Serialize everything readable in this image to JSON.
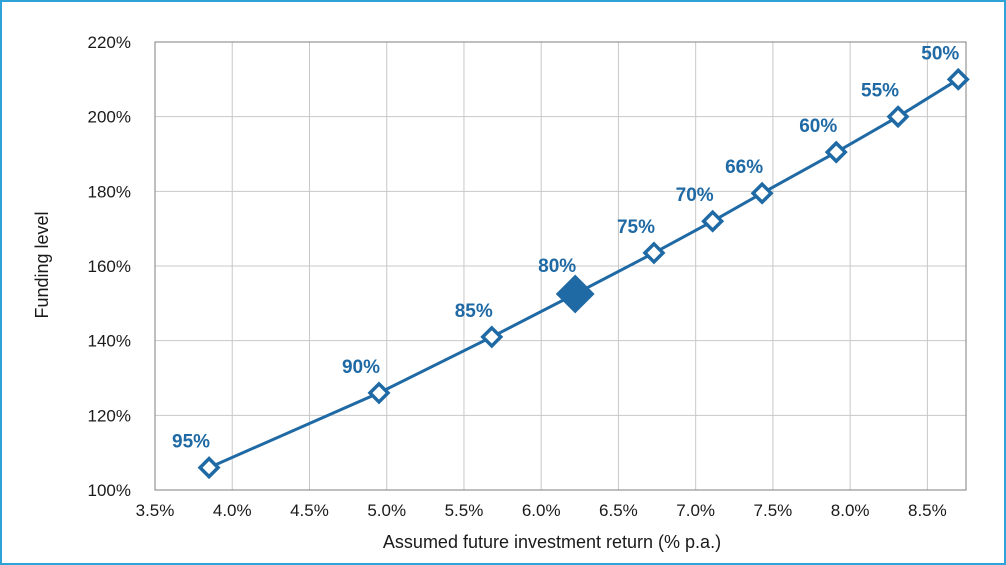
{
  "chart_data": {
    "type": "scatter",
    "title": "",
    "xlabel": "Assumed future investment return (% p.a.)",
    "ylabel": "Funding level",
    "xlim": [
      3.5,
      8.75
    ],
    "ylim": [
      100,
      220
    ],
    "x_ticks": [
      3.5,
      4.0,
      4.5,
      5.0,
      5.5,
      6.0,
      6.5,
      7.0,
      7.5,
      8.0,
      8.5
    ],
    "x_tick_labels": [
      "3.5%",
      "4.0%",
      "4.5%",
      "5.0%",
      "5.5%",
      "6.0%",
      "6.5%",
      "7.0%",
      "7.5%",
      "8.0%",
      "8.5%"
    ],
    "y_ticks": [
      100,
      120,
      140,
      160,
      180,
      200,
      220
    ],
    "y_tick_labels": [
      "100%",
      "120%",
      "140%",
      "160%",
      "180%",
      "200%",
      "220%"
    ],
    "grid": true,
    "series": [
      {
        "points": [
          {
            "x": 3.85,
            "y": 106,
            "label": "95%"
          },
          {
            "x": 4.95,
            "y": 126,
            "label": "90%"
          },
          {
            "x": 5.68,
            "y": 141,
            "label": "85%"
          },
          {
            "x": 6.22,
            "y": 152.5,
            "label": "80%",
            "highlight": true
          },
          {
            "x": 6.73,
            "y": 163.5,
            "label": "75%"
          },
          {
            "x": 7.11,
            "y": 172,
            "label": "70%"
          },
          {
            "x": 7.43,
            "y": 179.5,
            "label": "66%"
          },
          {
            "x": 7.91,
            "y": 190.5,
            "label": "60%"
          },
          {
            "x": 8.31,
            "y": 200,
            "label": "55%"
          },
          {
            "x": 8.7,
            "y": 210,
            "label": "50%"
          }
        ]
      }
    ],
    "colors": {
      "series": "#1f6aa5",
      "label": "#1f6aa5",
      "grid": "#c8c8c8",
      "axis": "#7f7f7f",
      "frame": "#2ea3d8"
    }
  }
}
